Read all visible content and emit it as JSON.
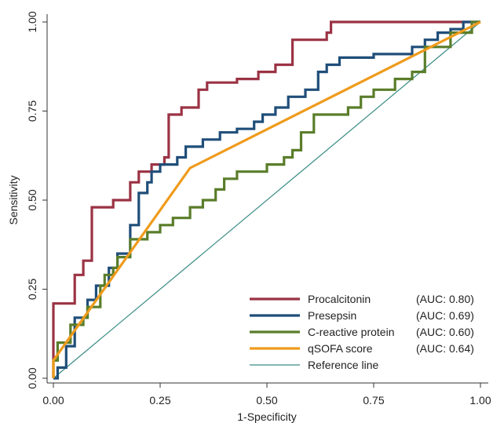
{
  "chart_data": {
    "type": "line",
    "xlabel": "1-Specificity",
    "ylabel": "Sensitivity",
    "xlim": [
      0,
      1
    ],
    "ylim": [
      0,
      1
    ],
    "x_ticks": [
      "0.00",
      "0.25",
      "0.50",
      "0.75",
      "1.00"
    ],
    "y_ticks": [
      "0.00",
      "0.25",
      "0.50",
      "0.75",
      "1.00"
    ],
    "grid": false,
    "legend_position": "bottom-right",
    "series": [
      {
        "name": "Procalcitonin",
        "auc": "(AUC: 0.80)",
        "color": "#9b3344",
        "points": [
          [
            0,
            0
          ],
          [
            0,
            0.21
          ],
          [
            0.05,
            0.21
          ],
          [
            0.05,
            0.29
          ],
          [
            0.07,
            0.29
          ],
          [
            0.07,
            0.33
          ],
          [
            0.09,
            0.33
          ],
          [
            0.09,
            0.48
          ],
          [
            0.14,
            0.48
          ],
          [
            0.14,
            0.5
          ],
          [
            0.18,
            0.5
          ],
          [
            0.18,
            0.55
          ],
          [
            0.2,
            0.55
          ],
          [
            0.2,
            0.58
          ],
          [
            0.23,
            0.58
          ],
          [
            0.23,
            0.6
          ],
          [
            0.26,
            0.6
          ],
          [
            0.26,
            0.62
          ],
          [
            0.27,
            0.62
          ],
          [
            0.27,
            0.74
          ],
          [
            0.3,
            0.74
          ],
          [
            0.3,
            0.76
          ],
          [
            0.34,
            0.76
          ],
          [
            0.34,
            0.81
          ],
          [
            0.36,
            0.81
          ],
          [
            0.36,
            0.83
          ],
          [
            0.43,
            0.83
          ],
          [
            0.43,
            0.84
          ],
          [
            0.48,
            0.84
          ],
          [
            0.48,
            0.86
          ],
          [
            0.52,
            0.86
          ],
          [
            0.52,
            0.88
          ],
          [
            0.56,
            0.88
          ],
          [
            0.56,
            0.95
          ],
          [
            0.64,
            0.95
          ],
          [
            0.64,
            0.97
          ],
          [
            0.65,
            0.97
          ],
          [
            0.65,
            1.0
          ],
          [
            1.0,
            1.0
          ]
        ]
      },
      {
        "name": "Presepsin",
        "auc": "(AUC: 0.69)",
        "color": "#1f4e79",
        "points": [
          [
            0,
            0
          ],
          [
            0.01,
            0
          ],
          [
            0.01,
            0.03
          ],
          [
            0.03,
            0.03
          ],
          [
            0.03,
            0.09
          ],
          [
            0.05,
            0.09
          ],
          [
            0.05,
            0.17
          ],
          [
            0.08,
            0.17
          ],
          [
            0.08,
            0.22
          ],
          [
            0.1,
            0.22
          ],
          [
            0.1,
            0.26
          ],
          [
            0.13,
            0.26
          ],
          [
            0.13,
            0.31
          ],
          [
            0.15,
            0.31
          ],
          [
            0.15,
            0.35
          ],
          [
            0.18,
            0.35
          ],
          [
            0.18,
            0.43
          ],
          [
            0.2,
            0.43
          ],
          [
            0.2,
            0.52
          ],
          [
            0.22,
            0.52
          ],
          [
            0.22,
            0.55
          ],
          [
            0.23,
            0.55
          ],
          [
            0.23,
            0.58
          ],
          [
            0.25,
            0.58
          ],
          [
            0.25,
            0.6
          ],
          [
            0.29,
            0.6
          ],
          [
            0.29,
            0.62
          ],
          [
            0.31,
            0.62
          ],
          [
            0.31,
            0.65
          ],
          [
            0.35,
            0.65
          ],
          [
            0.35,
            0.67
          ],
          [
            0.39,
            0.67
          ],
          [
            0.39,
            0.69
          ],
          [
            0.43,
            0.69
          ],
          [
            0.43,
            0.7
          ],
          [
            0.47,
            0.7
          ],
          [
            0.47,
            0.72
          ],
          [
            0.49,
            0.72
          ],
          [
            0.49,
            0.74
          ],
          [
            0.52,
            0.74
          ],
          [
            0.52,
            0.76
          ],
          [
            0.55,
            0.76
          ],
          [
            0.55,
            0.79
          ],
          [
            0.59,
            0.79
          ],
          [
            0.59,
            0.81
          ],
          [
            0.62,
            0.81
          ],
          [
            0.62,
            0.86
          ],
          [
            0.64,
            0.86
          ],
          [
            0.64,
            0.88
          ],
          [
            0.67,
            0.88
          ],
          [
            0.67,
            0.9
          ],
          [
            0.75,
            0.9
          ],
          [
            0.75,
            0.91
          ],
          [
            0.84,
            0.91
          ],
          [
            0.84,
            0.93
          ],
          [
            0.87,
            0.93
          ],
          [
            0.87,
            0.95
          ],
          [
            0.9,
            0.95
          ],
          [
            0.9,
            0.97
          ],
          [
            0.93,
            0.97
          ],
          [
            0.93,
            0.98
          ],
          [
            0.96,
            0.98
          ],
          [
            0.96,
            1.0
          ],
          [
            1.0,
            1.0
          ]
        ]
      },
      {
        "name": "C-reactive protein",
        "auc": "(AUC: 0.60)",
        "color": "#5a7d2a",
        "points": [
          [
            0,
            0
          ],
          [
            0,
            0.05
          ],
          [
            0.01,
            0.05
          ],
          [
            0.01,
            0.1
          ],
          [
            0.04,
            0.1
          ],
          [
            0.04,
            0.15
          ],
          [
            0.07,
            0.15
          ],
          [
            0.07,
            0.17
          ],
          [
            0.08,
            0.17
          ],
          [
            0.08,
            0.2
          ],
          [
            0.11,
            0.2
          ],
          [
            0.11,
            0.26
          ],
          [
            0.12,
            0.26
          ],
          [
            0.12,
            0.29
          ],
          [
            0.14,
            0.29
          ],
          [
            0.14,
            0.31
          ],
          [
            0.15,
            0.31
          ],
          [
            0.15,
            0.34
          ],
          [
            0.18,
            0.34
          ],
          [
            0.18,
            0.39
          ],
          [
            0.22,
            0.39
          ],
          [
            0.22,
            0.41
          ],
          [
            0.25,
            0.41
          ],
          [
            0.25,
            0.43
          ],
          [
            0.28,
            0.43
          ],
          [
            0.28,
            0.45
          ],
          [
            0.32,
            0.45
          ],
          [
            0.32,
            0.48
          ],
          [
            0.35,
            0.48
          ],
          [
            0.35,
            0.5
          ],
          [
            0.38,
            0.5
          ],
          [
            0.38,
            0.53
          ],
          [
            0.4,
            0.53
          ],
          [
            0.4,
            0.56
          ],
          [
            0.43,
            0.56
          ],
          [
            0.43,
            0.58
          ],
          [
            0.5,
            0.58
          ],
          [
            0.5,
            0.6
          ],
          [
            0.54,
            0.6
          ],
          [
            0.54,
            0.62
          ],
          [
            0.56,
            0.62
          ],
          [
            0.56,
            0.64
          ],
          [
            0.58,
            0.64
          ],
          [
            0.58,
            0.69
          ],
          [
            0.61,
            0.69
          ],
          [
            0.61,
            0.74
          ],
          [
            0.69,
            0.74
          ],
          [
            0.69,
            0.76
          ],
          [
            0.72,
            0.76
          ],
          [
            0.72,
            0.79
          ],
          [
            0.75,
            0.79
          ],
          [
            0.75,
            0.81
          ],
          [
            0.8,
            0.81
          ],
          [
            0.8,
            0.84
          ],
          [
            0.84,
            0.84
          ],
          [
            0.84,
            0.86
          ],
          [
            0.87,
            0.86
          ],
          [
            0.87,
            0.93
          ],
          [
            0.93,
            0.93
          ],
          [
            0.93,
            0.97
          ],
          [
            0.98,
            0.97
          ],
          [
            0.98,
            1.0
          ],
          [
            1.0,
            1.0
          ]
        ]
      },
      {
        "name": "qSOFA score",
        "auc": "(AUC: 0.64)",
        "color": "#ef9b1c",
        "points": [
          [
            0,
            0
          ],
          [
            0,
            0.05
          ],
          [
            0.32,
            0.59
          ],
          [
            1.0,
            1.0
          ]
        ]
      },
      {
        "name": "Reference line",
        "auc": "",
        "color": "#3a8c84",
        "points": [
          [
            0,
            0
          ],
          [
            1.0,
            1.0
          ]
        ]
      }
    ]
  }
}
